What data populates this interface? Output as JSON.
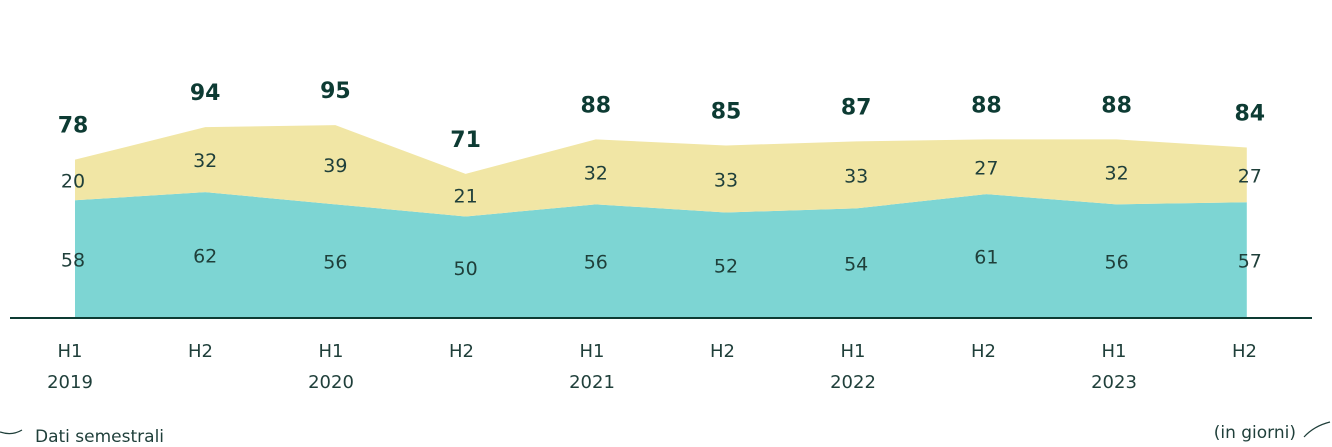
{
  "chart_data": {
    "type": "stacked_area",
    "categories": [
      "H1",
      "H2",
      "H1",
      "H2",
      "H1",
      "H2",
      "H1",
      "H2",
      "H1",
      "H2"
    ],
    "years": [
      "2019",
      null,
      "2020",
      null,
      "2021",
      null,
      "2022",
      null,
      "2023",
      null
    ],
    "series": [
      {
        "color": "#7dd5d3",
        "values": [
          58,
          62,
          56,
          50,
          56,
          52,
          54,
          61,
          56,
          57
        ]
      },
      {
        "color": "#f1e6a5",
        "values": [
          20,
          32,
          39,
          21,
          32,
          33,
          33,
          27,
          32,
          27
        ]
      }
    ],
    "totals": [
      78,
      94,
      95,
      71,
      88,
      85,
      87,
      88,
      88,
      84
    ],
    "ylim": [
      0,
      100
    ],
    "footnote_left": "Dati semestrali",
    "footnote_right": "(in giorni)"
  }
}
